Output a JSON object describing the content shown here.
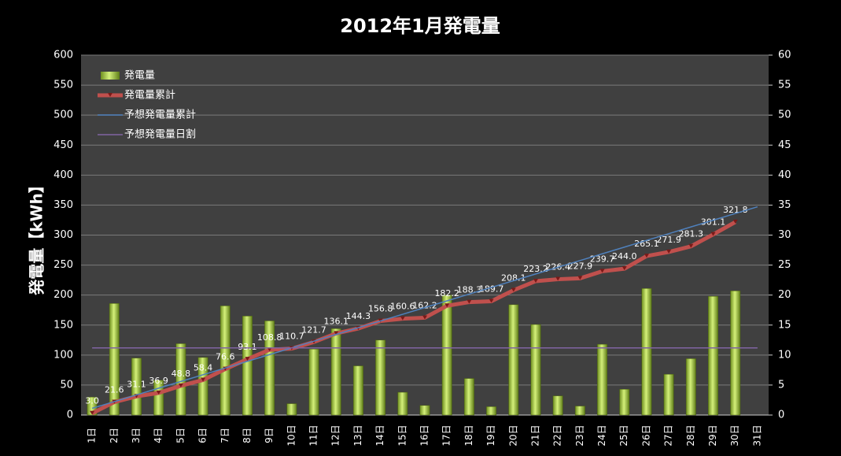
{
  "chart_data": {
    "type": "bar",
    "title": "2012年1月発電量",
    "y_label": "発電量【kWh】",
    "categories": [
      "1日",
      "2日",
      "3日",
      "4日",
      "5日",
      "6日",
      "7日",
      "8日",
      "9日",
      "10日",
      "11日",
      "12日",
      "13日",
      "14日",
      "15日",
      "16日",
      "17日",
      "18日",
      "19日",
      "20日",
      "21日",
      "22日",
      "23日",
      "24日",
      "25日",
      "26日",
      "27日",
      "28日",
      "29日",
      "30日",
      "31日"
    ],
    "ylim": [
      0,
      600
    ],
    "yticks": [
      0,
      50,
      100,
      150,
      200,
      250,
      300,
      350,
      400,
      450,
      500,
      550,
      600
    ],
    "y2lim": [
      0,
      60
    ],
    "y2ticks": [
      0,
      5,
      10,
      15,
      20,
      25,
      30,
      35,
      40,
      45,
      50,
      55,
      60
    ],
    "grid": true,
    "legend": "top-left",
    "series": [
      {
        "name": "発電量",
        "type": "bar",
        "axis": "y2",
        "color": "#9bc43a",
        "values": [
          3.0,
          18.6,
          9.5,
          5.8,
          11.9,
          9.6,
          18.2,
          16.5,
          15.7,
          1.9,
          11.0,
          14.4,
          8.2,
          12.5,
          3.8,
          1.6,
          20.0,
          6.1,
          1.4,
          18.4,
          15.1,
          3.2,
          1.5,
          11.8,
          4.3,
          21.1,
          6.8,
          9.4,
          19.8,
          20.7,
          null
        ]
      },
      {
        "name": "発電量累計",
        "type": "line",
        "axis": "y",
        "color": "#c0504d",
        "values": [
          3.0,
          21.6,
          31.1,
          36.9,
          48.8,
          58.4,
          76.6,
          93.1,
          108.8,
          110.7,
          121.7,
          136.1,
          144.3,
          156.8,
          160.6,
          162.2,
          182.2,
          188.3,
          189.7,
          208.1,
          223.2,
          226.4,
          227.9,
          239.7,
          244.0,
          265.1,
          271.9,
          281.3,
          301.1,
          321.8,
          null
        ],
        "value_labels": [
          "3.0",
          "21.6",
          "31.1",
          "36.9",
          "48.8",
          "58.4",
          "76.6",
          "93.1",
          "108.8",
          "110.7",
          "121.7",
          "136.1",
          "144.3",
          "156.8",
          "160.6",
          "162.2",
          "182.2",
          "188.3",
          "189.7",
          "208.1",
          "223.2",
          "226.4",
          "227.9",
          "239.7",
          "244.0",
          "265.1",
          "271.9",
          "281.3",
          "301.1",
          "321.8",
          null
        ]
      },
      {
        "name": "予想発電量累計",
        "type": "line",
        "axis": "y",
        "color": "#4f81bd",
        "values": [
          11.2,
          22.4,
          33.6,
          44.8,
          56.0,
          67.2,
          78.4,
          89.6,
          100.8,
          112.0,
          123.2,
          134.4,
          145.6,
          156.8,
          168.0,
          179.2,
          190.4,
          201.6,
          212.8,
          224.0,
          235.2,
          246.4,
          257.6,
          268.8,
          280.0,
          291.2,
          302.4,
          313.6,
          324.8,
          336.0,
          347.2
        ]
      },
      {
        "name": "予想発電量日割",
        "type": "line",
        "axis": "y2",
        "color": "#8064a2",
        "values": [
          11.2,
          11.2,
          11.2,
          11.2,
          11.2,
          11.2,
          11.2,
          11.2,
          11.2,
          11.2,
          11.2,
          11.2,
          11.2,
          11.2,
          11.2,
          11.2,
          11.2,
          11.2,
          11.2,
          11.2,
          11.2,
          11.2,
          11.2,
          11.2,
          11.2,
          11.2,
          11.2,
          11.2,
          11.2,
          11.2,
          11.2
        ]
      }
    ]
  }
}
